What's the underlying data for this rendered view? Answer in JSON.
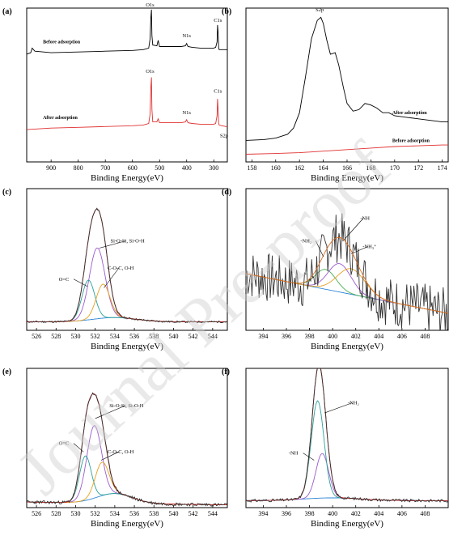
{
  "watermark": "Journal Pre-proof",
  "chart_data": [
    {
      "id": "a",
      "panel_label": "(a)",
      "type": "line",
      "xlabel": "Binding Energy(eV)",
      "xlim": [
        990,
        250
      ],
      "reversed": true,
      "xticks": [
        900,
        800,
        700,
        600,
        500,
        400,
        300
      ],
      "ylim": [
        0,
        100
      ],
      "grid": false,
      "series": [
        {
          "name": "Before adsorption",
          "color": "#000000",
          "x": [
            990,
            975,
            970,
            960,
            900,
            800,
            700,
            600,
            560,
            540,
            535,
            532,
            530,
            528,
            525,
            510,
            505,
            500,
            480,
            420,
            405,
            400,
            398,
            395,
            380,
            350,
            300,
            293,
            288,
            286,
            284,
            282,
            280,
            270,
            255,
            250
          ],
          "y": [
            70,
            71,
            74,
            72,
            71,
            71.5,
            72,
            72.5,
            73,
            74,
            80,
            94,
            99,
            82,
            76,
            75.5,
            79,
            75,
            75,
            75,
            75.5,
            77,
            76,
            75,
            74.5,
            74,
            74,
            74.5,
            78,
            89,
            84,
            74,
            73,
            73,
            73,
            73
          ]
        },
        {
          "name": "After adsorption",
          "color": "#e03030",
          "x": [
            990,
            900,
            800,
            700,
            600,
            560,
            540,
            535,
            532,
            530,
            528,
            525,
            510,
            505,
            500,
            480,
            420,
            405,
            400,
            398,
            395,
            380,
            350,
            300,
            293,
            288,
            286,
            284,
            282,
            280,
            270,
            255,
            250
          ],
          "y": [
            21,
            22,
            22.5,
            23,
            23.5,
            24,
            25,
            31,
            49,
            55,
            34,
            26,
            26,
            28,
            25.5,
            25.5,
            25.5,
            26,
            27.5,
            26.5,
            25.5,
            25,
            24.5,
            24.5,
            25,
            30,
            41,
            34,
            25,
            24,
            23.5,
            23,
            23
          ]
        }
      ],
      "annotations": [
        {
          "text": "O1s",
          "x": 535,
          "y": 101
        },
        {
          "text": "N1s",
          "x": 400,
          "y": 81
        },
        {
          "text": "C1s",
          "x": 285,
          "y": 91
        },
        {
          "text": "Before adsorption",
          "x": 930,
          "y": 77,
          "bold": true
        },
        {
          "text": "O1s",
          "x": 535,
          "y": 58
        },
        {
          "text": "N1s",
          "x": 400,
          "y": 31
        },
        {
          "text": "C1s",
          "x": 285,
          "y": 45
        },
        {
          "text": "After adsorption",
          "x": 930,
          "y": 28,
          "bold": true
        },
        {
          "text": "S2p",
          "x": 262,
          "y": 16
        }
      ]
    },
    {
      "id": "b",
      "panel_label": "(b)",
      "type": "line",
      "xlabel": "Binding Energy(eV)",
      "xlim": [
        157.5,
        174.5
      ],
      "xticks": [
        158,
        160,
        162,
        164,
        166,
        168,
        170,
        172,
        174
      ],
      "ylim": [
        0,
        100
      ],
      "grid": false,
      "series": [
        {
          "name": "After adsorption",
          "color": "#000000",
          "x": [
            157.5,
            159,
            160,
            161,
            161.5,
            162,
            162.5,
            163,
            163.5,
            163.8,
            164,
            164.3,
            164.6,
            165,
            165.3,
            165.7,
            166,
            166.5,
            167,
            167.5,
            168,
            168.5,
            169,
            169.5,
            170,
            171,
            172,
            173,
            174,
            174.5
          ],
          "y": [
            14,
            14.5,
            15.5,
            18,
            22,
            32,
            55,
            80,
            92,
            94,
            90,
            79,
            70,
            71,
            63,
            48,
            38,
            33,
            34,
            38,
            37,
            35,
            32,
            32,
            30,
            29,
            28,
            27,
            26,
            26
          ]
        },
        {
          "name": "Before adsorption",
          "color": "#e03030",
          "x": [
            157.5,
            160,
            162,
            164,
            166,
            168,
            170,
            172,
            174,
            174.5
          ],
          "y": [
            5,
            5.5,
            6,
            7,
            8,
            9,
            10,
            10.5,
            11,
            11
          ]
        }
      ],
      "annotations": [
        {
          "text": "S2p",
          "x": 163.7,
          "y": 98
        },
        {
          "text": "After adsorption",
          "x": 169.8,
          "y": 31,
          "bold": true
        },
        {
          "text": "Before adsorption",
          "x": 169.8,
          "y": 13,
          "bold": true
        }
      ]
    },
    {
      "id": "c",
      "panel_label": "(c)",
      "type": "line",
      "xlabel": "Binding Energy(eV)",
      "xlim": [
        525,
        545.5
      ],
      "xticks": [
        526,
        528,
        530,
        532,
        534,
        536,
        538,
        540,
        542,
        544
      ],
      "ylim": [
        0,
        100
      ],
      "grid": false,
      "annotations": [
        {
          "text": "Si-O-Si, Si-O-H",
          "x": 535.3,
          "y": 62,
          "arrow_to": [
            532.4,
            58
          ]
        },
        {
          "text": "O=C",
          "x": 528.8,
          "y": 35,
          "arrow_to": [
            531.2,
            31
          ]
        },
        {
          "text": "C-O-C, O-H",
          "x": 534.6,
          "y": 43,
          "arrow_to": [
            532.9,
            30
          ]
        }
      ]
    },
    {
      "id": "d",
      "panel_label": "(d)",
      "type": "line",
      "xlabel": "Binding Energy(eV)",
      "xlim": [
        392.5,
        410
      ],
      "xticks": [
        394,
        396,
        398,
        400,
        402,
        404,
        406,
        408
      ],
      "ylim": [
        0,
        100
      ],
      "grid": false,
      "annotations": [
        {
          "text": "-NH",
          "x": 402.8,
          "y": 78,
          "arrow_to": [
            401,
            64
          ]
        },
        {
          "text": "-NH₂",
          "x": 397.7,
          "y": 62,
          "arrow_to": [
            399.2,
            52
          ]
        },
        {
          "text": "-NH₃⁺",
          "x": 403.2,
          "y": 58,
          "arrow_to": [
            401.6,
            54
          ]
        }
      ]
    },
    {
      "id": "e",
      "panel_label": "(e)",
      "type": "line",
      "xlabel": "Binding Energy(eV)",
      "xlim": [
        525,
        545.5
      ],
      "xticks": [
        526,
        528,
        530,
        532,
        534,
        536,
        538,
        540,
        542,
        544
      ],
      "ylim": [
        0,
        100
      ],
      "grid": false,
      "annotations": [
        {
          "text": "Si-O-Si, Si-O-H",
          "x": 535.2,
          "y": 72,
          "arrow_to": [
            532.0,
            64
          ]
        },
        {
          "text": "O=C",
          "x": 528.8,
          "y": 45,
          "arrow_to": [
            530.8,
            40
          ]
        },
        {
          "text": "C-O-C, O-H",
          "x": 534.6,
          "y": 39,
          "arrow_to": [
            532.6,
            34
          ]
        }
      ]
    },
    {
      "id": "f",
      "panel_label": "(f)",
      "type": "line",
      "xlabel": "Binding Energy(eV)",
      "xlim": [
        392.5,
        410
      ],
      "xticks": [
        394,
        396,
        398,
        400,
        402,
        404,
        406,
        408
      ],
      "ylim": [
        0,
        100
      ],
      "grid": false,
      "annotations": [
        {
          "text": "-NH₂",
          "x": 401.8,
          "y": 74,
          "arrow_to": [
            399.3,
            68
          ]
        },
        {
          "text": "-NH",
          "x": 396.6,
          "y": 38,
          "arrow_to": [
            398.4,
            34
          ]
        }
      ]
    }
  ]
}
